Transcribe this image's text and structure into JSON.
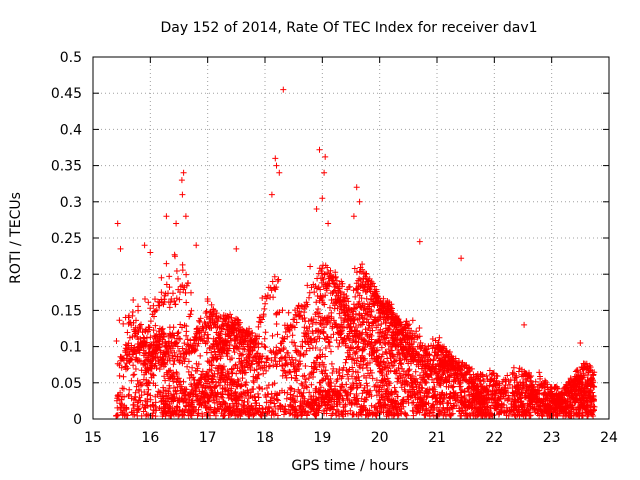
{
  "chart_data": {
    "type": "scatter",
    "title": "Day 152 of 2014, Rate Of TEC Index for receiver dav1",
    "xlabel": "GPS time / hours",
    "ylabel": "ROTI / TECUs",
    "xlim": [
      15,
      24
    ],
    "ylim": [
      0,
      0.5
    ],
    "xticks": [
      "15",
      "16",
      "17",
      "18",
      "19",
      "20",
      "21",
      "22",
      "23",
      "24"
    ],
    "yticks": [
      "0",
      "0.05",
      "0.1",
      "0.15",
      "0.2",
      "0.25",
      "0.3",
      "0.35",
      "0.4",
      "0.45",
      "0.5"
    ],
    "grid": true,
    "marker": "+",
    "color": "#ff0000",
    "series": [
      {
        "name": "ROTI",
        "envelope_x": [
          15.4,
          15.6,
          15.8,
          16.0,
          16.2,
          16.4,
          16.6,
          16.8,
          17.0,
          17.2,
          17.4,
          17.6,
          17.8,
          18.0,
          18.2,
          18.4,
          18.6,
          18.8,
          19.0,
          19.2,
          19.4,
          19.6,
          19.8,
          20.0,
          20.2,
          20.4,
          20.6,
          20.8,
          21.0,
          21.2,
          21.4,
          21.6,
          21.8,
          22.0,
          22.2,
          22.4,
          22.6,
          22.8,
          23.0,
          23.2,
          23.4,
          23.6,
          23.75
        ],
        "envelope_y": [
          0.16,
          0.17,
          0.16,
          0.17,
          0.2,
          0.23,
          0.22,
          0.15,
          0.17,
          0.14,
          0.15,
          0.13,
          0.12,
          0.18,
          0.2,
          0.15,
          0.16,
          0.21,
          0.22,
          0.2,
          0.19,
          0.22,
          0.2,
          0.17,
          0.16,
          0.13,
          0.15,
          0.1,
          0.12,
          0.09,
          0.08,
          0.07,
          0.06,
          0.065,
          0.06,
          0.07,
          0.065,
          0.06,
          0.045,
          0.045,
          0.06,
          0.08,
          0.07
        ],
        "outliers": [
          [
            15.43,
            0.27
          ],
          [
            15.48,
            0.235
          ],
          [
            15.9,
            0.24
          ],
          [
            16.0,
            0.23
          ],
          [
            16.28,
            0.28
          ],
          [
            16.45,
            0.27
          ],
          [
            16.58,
            0.34
          ],
          [
            16.55,
            0.33
          ],
          [
            16.56,
            0.31
          ],
          [
            16.62,
            0.28
          ],
          [
            16.8,
            0.24
          ],
          [
            17.5,
            0.235
          ],
          [
            18.12,
            0.31
          ],
          [
            18.18,
            0.36
          ],
          [
            18.2,
            0.35
          ],
          [
            18.25,
            0.34
          ],
          [
            18.32,
            0.455
          ],
          [
            18.95,
            0.372
          ],
          [
            19.05,
            0.362
          ],
          [
            19.03,
            0.34
          ],
          [
            18.9,
            0.29
          ],
          [
            19.1,
            0.27
          ],
          [
            19.6,
            0.32
          ],
          [
            19.65,
            0.3
          ],
          [
            19.55,
            0.28
          ],
          [
            19.0,
            0.305
          ],
          [
            20.7,
            0.245
          ],
          [
            21.42,
            0.222
          ],
          [
            22.52,
            0.13
          ],
          [
            23.5,
            0.105
          ]
        ]
      }
    ]
  }
}
